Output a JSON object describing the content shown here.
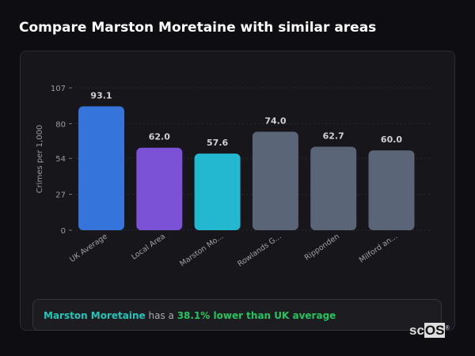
{
  "title": "Compare Marston Moretaine with similar areas",
  "chart_data": {
    "type": "bar",
    "categories": [
      "UK Average",
      "Local Area",
      "Marston Mo...",
      "Rowlands G...",
      "Ripponden",
      "Milford an..."
    ],
    "values": [
      93.1,
      62.0,
      57.6,
      74.0,
      62.7,
      60.0
    ],
    "value_labels": [
      "93.1",
      "62.0",
      "57.6",
      "74.0",
      "62.7",
      "60.0"
    ],
    "colors": [
      "#3474db",
      "#7b52d6",
      "#22b8cf",
      "#5a6577",
      "#5a6577",
      "#5a6577"
    ],
    "ylabel": "Crimes per 1,000",
    "xlabel": "",
    "ylim": [
      0,
      107
    ],
    "yticks": [
      0,
      27,
      54,
      80,
      107
    ],
    "grid": true
  },
  "summary": {
    "area": "Marston Moretaine",
    "middle": " has a ",
    "difference": "38.1% lower than UK average"
  },
  "logo": {
    "text": "scOS",
    "mark": "®"
  }
}
